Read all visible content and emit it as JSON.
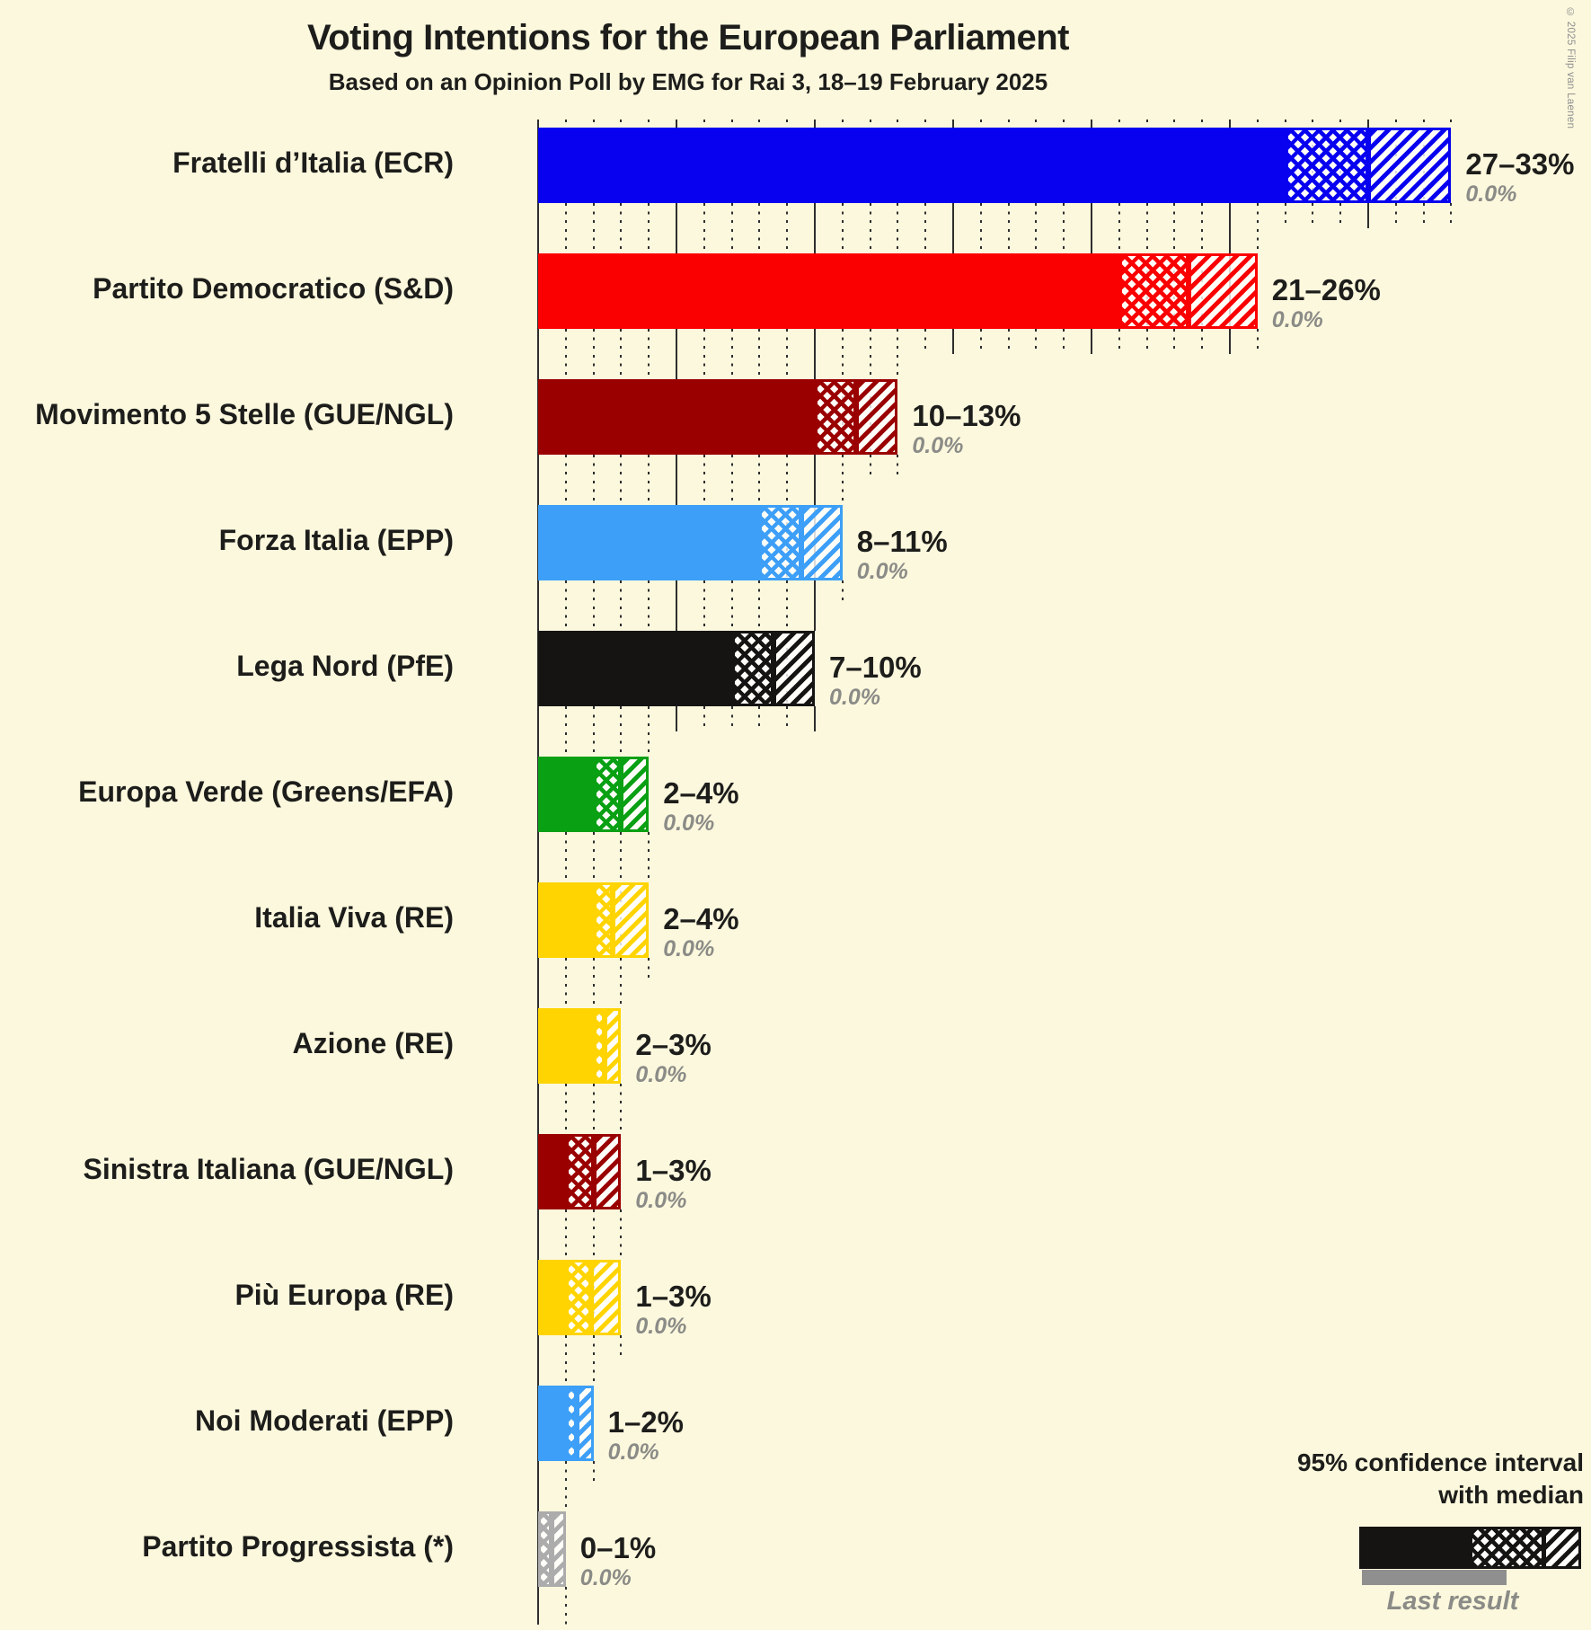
{
  "title": "Voting Intentions for the European Parliament",
  "subtitle": "Based on an Opinion Poll by EMG for Rai 3, 18–19 February 2025",
  "copyright": "© 2025 Filip van Laenen",
  "axis": {
    "min": 0,
    "max": 35,
    "minor_step_pct": 1,
    "major_step_pct": 5,
    "tick_labels_shown": false
  },
  "legend": {
    "line1": "95% confidence interval",
    "line2": "with median",
    "last_result_label": "Last result",
    "sample_color": "#151413",
    "last_result_color": "#8f8f8f"
  },
  "colors": {
    "background": "#fcf8dd",
    "text": "#1d1d1b",
    "muted_text": "#8b8b87",
    "gridline": "#2e2e2e"
  },
  "chart_data": {
    "type": "bar",
    "orientation": "horizontal",
    "title": "Voting Intentions for the European Parliament",
    "subtitle": "Based on an Opinion Poll by EMG for Rai 3, 18–19 February 2025",
    "value_unit": "percent",
    "xlim": [
      0,
      35
    ],
    "note": "Each bar: solid fill to CI low, crosshatch from low to median, diagonal hatch from median to high. Gray underbar (last result) is 0.0% for all parties.",
    "parties": [
      {
        "label": "Fratelli d’Italia (ECR)",
        "low": 27,
        "median": 30,
        "high": 33,
        "ci_label": "27–33%",
        "last_result": "0.0%",
        "color": "#0801f0"
      },
      {
        "label": "Partito Democratico (S&D)",
        "low": 21,
        "median": 23.5,
        "high": 26,
        "ci_label": "21–26%",
        "last_result": "0.0%",
        "color": "#fa0000"
      },
      {
        "label": "Movimento 5 Stelle (GUE/NGL)",
        "low": 10,
        "median": 11.5,
        "high": 13,
        "ci_label": "10–13%",
        "last_result": "0.0%",
        "color": "#9a0000"
      },
      {
        "label": "Forza Italia (EPP)",
        "low": 8,
        "median": 9.5,
        "high": 11,
        "ci_label": "8–11%",
        "last_result": "0.0%",
        "color": "#3d9ff7"
      },
      {
        "label": "Lega Nord (PfE)",
        "low": 7,
        "median": 8.5,
        "high": 10,
        "ci_label": "7–10%",
        "last_result": "0.0%",
        "color": "#151413"
      },
      {
        "label": "Europa Verde (Greens/EFA)",
        "low": 2,
        "median": 3,
        "high": 4,
        "ci_label": "2–4%",
        "last_result": "0.0%",
        "color": "#09a014"
      },
      {
        "label": "Italia Viva (RE)",
        "low": 2,
        "median": 2.7,
        "high": 4,
        "ci_label": "2–4%",
        "last_result": "0.0%",
        "color": "#ffd400"
      },
      {
        "label": "Azione (RE)",
        "low": 2,
        "median": 2.4,
        "high": 3,
        "ci_label": "2–3%",
        "last_result": "0.0%",
        "color": "#ffd400"
      },
      {
        "label": "Sinistra Italiana (GUE/NGL)",
        "low": 1,
        "median": 2,
        "high": 3,
        "ci_label": "1–3%",
        "last_result": "0.0%",
        "color": "#9a0000"
      },
      {
        "label": "Più Europa (RE)",
        "low": 1,
        "median": 1.9,
        "high": 3,
        "ci_label": "1–3%",
        "last_result": "0.0%",
        "color": "#ffd400"
      },
      {
        "label": "Noi Moderati (EPP)",
        "low": 1,
        "median": 1.4,
        "high": 2,
        "ci_label": "1–2%",
        "last_result": "0.0%",
        "color": "#3d9ff7"
      },
      {
        "label": "Partito Progressista (*)",
        "low": 0,
        "median": 0.5,
        "high": 1,
        "ci_label": "0–1%",
        "last_result": "0.0%",
        "color": "#acacac"
      }
    ]
  }
}
